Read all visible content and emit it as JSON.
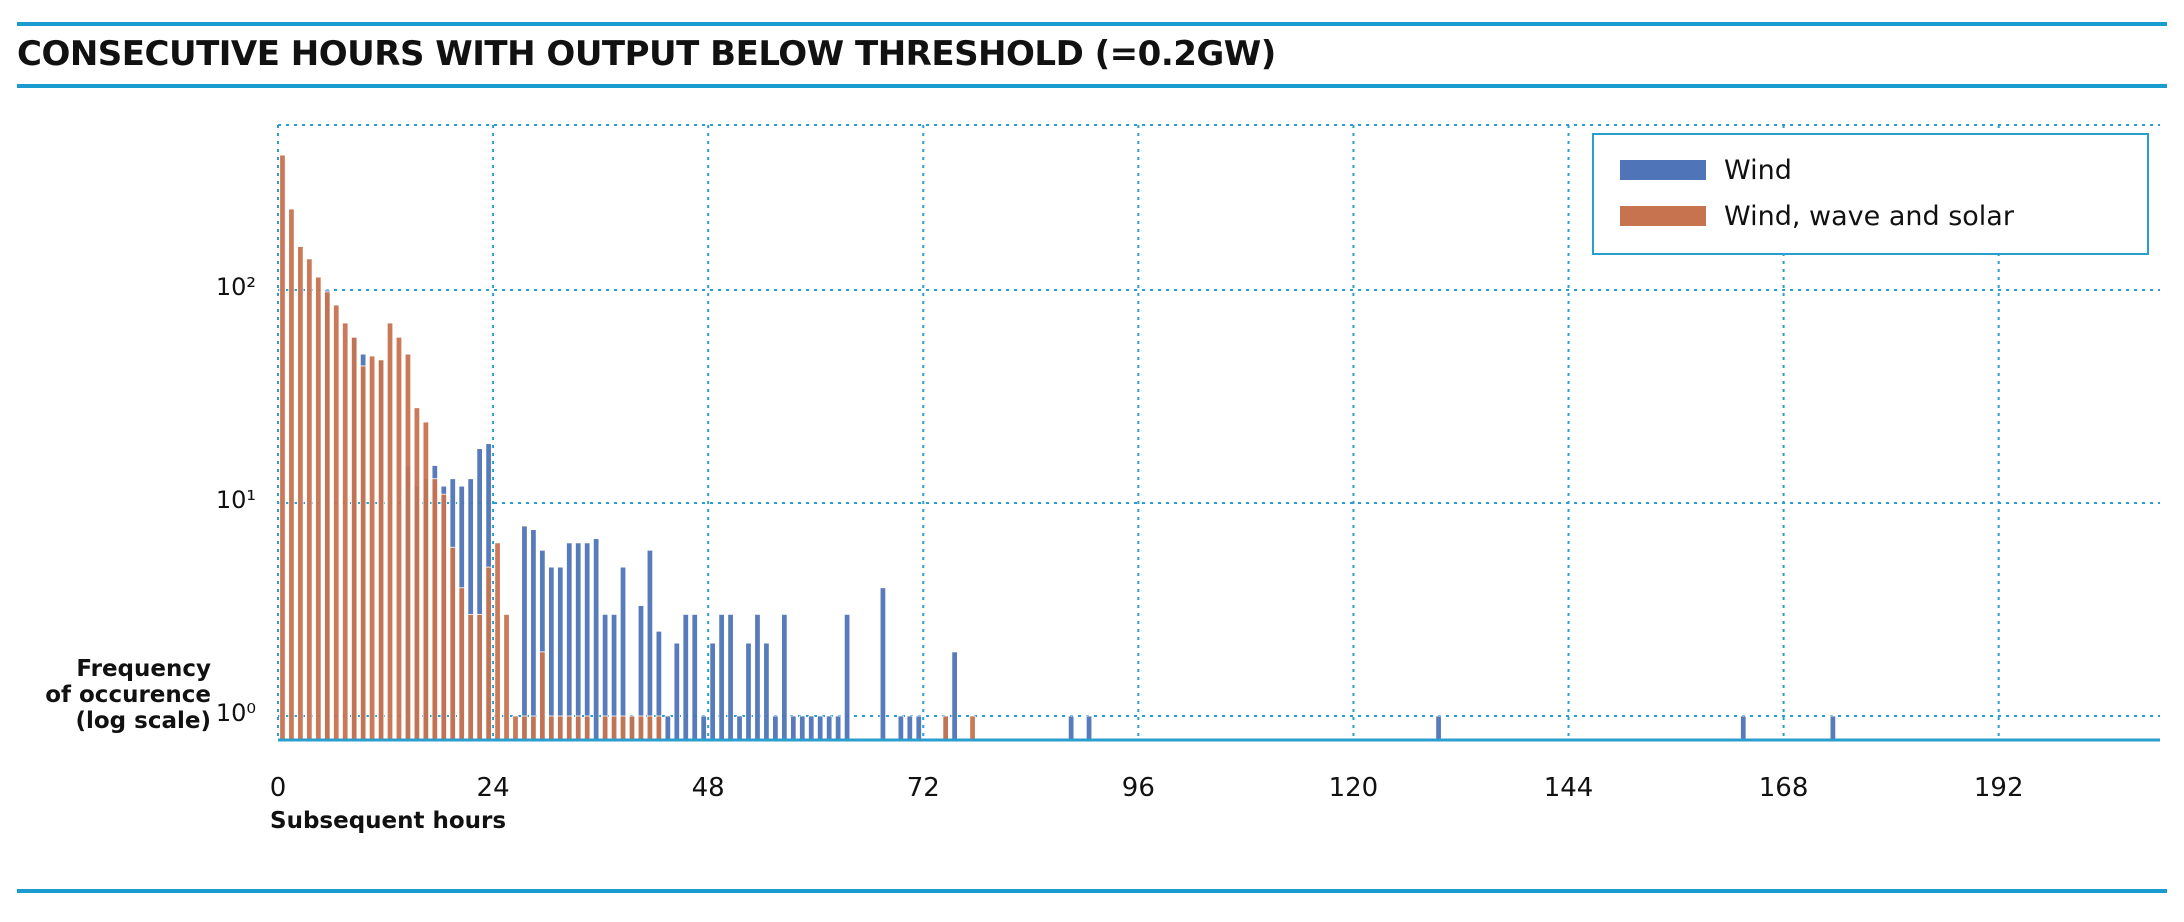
{
  "header": {
    "title": "CONSECUTIVE HOURS WITH OUTPUT BELOW THRESHOLD (=0.2GW)"
  },
  "colors": {
    "rule": "#1a9cd0",
    "grid": "#2a9fcf",
    "wind": "#4f74b8",
    "wind_wave_solar": "#c7734f"
  },
  "chart_data": {
    "type": "bar",
    "title": "CONSECUTIVE HOURS WITH OUTPUT BELOW THRESHOLD (=0.2GW)",
    "xlabel": "Subsequent hours",
    "ylabel_lines": [
      "Frequency",
      "of occurence",
      "(log scale)"
    ],
    "x_ticks": [
      "0",
      "24",
      "48",
      "72",
      "96",
      "120",
      "144",
      "168",
      "192"
    ],
    "x_tick_values": [
      0,
      24,
      48,
      72,
      96,
      120,
      144,
      168,
      192
    ],
    "y_ticks": [
      "10⁰",
      "10¹",
      "10²"
    ],
    "y_tick_values": [
      1,
      10,
      100
    ],
    "y_scale": "log",
    "xlim": [
      0,
      210
    ],
    "ylim": [
      1,
      450
    ],
    "grid": true,
    "legend_position": "top-right",
    "series": [
      {
        "name": "Wind",
        "points": [
          [
            5,
            100
          ],
          [
            8,
            60
          ],
          [
            9,
            50
          ],
          [
            11,
            47
          ],
          [
            14,
            15
          ],
          [
            15,
            12
          ],
          [
            16,
            13
          ],
          [
            17,
            15
          ],
          [
            18,
            12
          ],
          [
            19,
            13
          ],
          [
            20,
            12
          ],
          [
            21,
            13
          ],
          [
            22,
            18
          ],
          [
            23,
            19
          ],
          [
            27,
            7.8
          ],
          [
            28,
            7.5
          ],
          [
            29,
            6
          ],
          [
            30,
            5
          ],
          [
            31,
            5
          ],
          [
            32,
            6.5
          ],
          [
            33,
            6.5
          ],
          [
            34,
            6.5
          ],
          [
            35,
            6.8
          ],
          [
            36,
            3
          ],
          [
            37,
            3
          ],
          [
            38,
            5
          ],
          [
            39,
            1
          ],
          [
            40,
            3.3
          ],
          [
            41,
            6
          ],
          [
            42,
            2.5
          ],
          [
            43,
            1
          ],
          [
            44,
            2.2
          ],
          [
            45,
            3
          ],
          [
            46,
            3
          ],
          [
            47,
            1
          ],
          [
            48,
            2.2
          ],
          [
            49,
            3
          ],
          [
            50,
            3
          ],
          [
            51,
            1
          ],
          [
            52,
            2.2
          ],
          [
            53,
            3
          ],
          [
            54,
            2.2
          ],
          [
            55,
            1
          ],
          [
            56,
            3
          ],
          [
            57,
            1
          ],
          [
            58,
            1
          ],
          [
            59,
            1
          ],
          [
            60,
            1
          ],
          [
            61,
            1
          ],
          [
            62,
            1
          ],
          [
            63,
            3
          ],
          [
            67,
            4
          ],
          [
            69,
            1
          ],
          [
            70,
            1
          ],
          [
            71,
            1
          ],
          [
            74,
            1
          ],
          [
            75,
            2
          ],
          [
            88,
            1
          ],
          [
            90,
            1
          ],
          [
            129,
            1
          ],
          [
            163,
            1
          ],
          [
            173,
            1
          ]
        ]
      },
      {
        "name": "Wind, wave and solar",
        "points": [
          [
            0,
            430
          ],
          [
            1,
            240
          ],
          [
            2,
            160
          ],
          [
            3,
            140
          ],
          [
            4,
            115
          ],
          [
            5,
            98
          ],
          [
            6,
            85
          ],
          [
            7,
            70
          ],
          [
            8,
            60
          ],
          [
            9,
            44
          ],
          [
            10,
            49
          ],
          [
            11,
            47
          ],
          [
            12,
            70
          ],
          [
            13,
            60
          ],
          [
            14,
            50
          ],
          [
            15,
            28
          ],
          [
            16,
            24
          ],
          [
            17,
            13
          ],
          [
            18,
            11
          ],
          [
            19,
            6.2
          ],
          [
            20,
            4
          ],
          [
            21,
            3
          ],
          [
            22,
            3
          ],
          [
            23,
            5
          ],
          [
            24,
            6.5
          ],
          [
            25,
            3
          ],
          [
            26,
            1
          ],
          [
            27,
            1
          ],
          [
            28,
            1
          ],
          [
            29,
            2
          ],
          [
            30,
            1
          ],
          [
            31,
            1
          ],
          [
            32,
            1
          ],
          [
            33,
            1
          ],
          [
            34,
            1
          ],
          [
            36,
            1
          ],
          [
            37,
            1
          ],
          [
            38,
            1
          ],
          [
            39,
            1
          ],
          [
            40,
            1
          ],
          [
            41,
            1
          ],
          [
            42,
            1
          ],
          [
            74,
            1
          ],
          [
            77,
            1
          ]
        ]
      }
    ]
  }
}
